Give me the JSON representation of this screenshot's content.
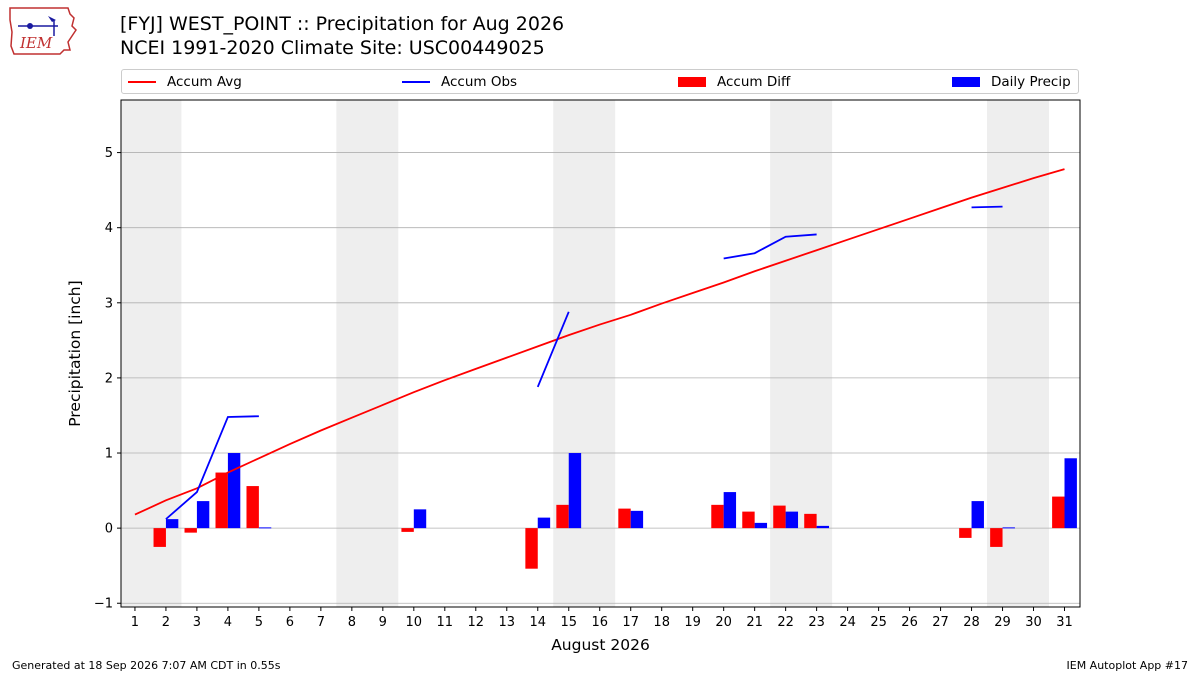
{
  "header": {
    "title_line1": "[FYJ] WEST_POINT :: Precipitation for Aug 2026",
    "title_line2": "NCEI 1991-2020 Climate Site: USC00449025"
  },
  "logo": {
    "text": "IEM"
  },
  "footer": {
    "left": "Generated at 18 Sep 2026 7:07 AM CDT in 0.55s",
    "right": "IEM Autoplot App #17"
  },
  "colors": {
    "red": "#ff0000",
    "blue": "#0000ff",
    "weekend": "#eeeeee",
    "grid": "#b0b0b0"
  },
  "chart_data": {
    "type": "bar",
    "xlabel": "August 2026",
    "ylabel": "Precipitation [inch]",
    "ylim": [
      -1.05,
      5.7
    ],
    "yticks": [
      -1,
      0,
      1,
      2,
      3,
      4,
      5
    ],
    "xticks": [
      1,
      2,
      3,
      4,
      5,
      6,
      7,
      8,
      9,
      10,
      11,
      12,
      13,
      14,
      15,
      16,
      17,
      18,
      19,
      20,
      21,
      22,
      23,
      24,
      25,
      26,
      27,
      28,
      29,
      30,
      31
    ],
    "grid": "horizontal",
    "legend_position": "top",
    "shaded_weekends": [
      [
        1,
        2
      ],
      [
        8,
        9
      ],
      [
        15,
        16
      ],
      [
        22,
        23
      ],
      [
        29,
        30
      ]
    ],
    "legend": [
      "Accum Avg",
      "Accum Obs",
      "Accum Diff",
      "Daily Precip"
    ],
    "series": [
      {
        "name": "Accum Avg",
        "kind": "line",
        "color": "#ff0000",
        "x": [
          1,
          2,
          3,
          4,
          5,
          6,
          7,
          8,
          9,
          10,
          11,
          12,
          13,
          14,
          15,
          16,
          17,
          18,
          19,
          20,
          21,
          22,
          23,
          24,
          25,
          26,
          27,
          28,
          29,
          30,
          31
        ],
        "values": [
          0.18,
          0.37,
          0.53,
          0.74,
          0.93,
          1.12,
          1.3,
          1.47,
          1.64,
          1.81,
          1.97,
          2.12,
          2.27,
          2.42,
          2.57,
          2.71,
          2.84,
          2.99,
          3.13,
          3.27,
          3.42,
          3.56,
          3.7,
          3.84,
          3.98,
          4.12,
          4.26,
          4.4,
          4.53,
          4.66,
          4.78
        ]
      },
      {
        "name": "Accum Obs",
        "kind": "line",
        "color": "#0000ff",
        "segments": [
          {
            "x": [
              2,
              3,
              4,
              5
            ],
            "values": [
              0.12,
              0.48,
              1.48,
              1.49
            ]
          },
          {
            "x": [
              14,
              15
            ],
            "values": [
              1.88,
              2.88
            ]
          },
          {
            "x": [
              20,
              21,
              22,
              23
            ],
            "values": [
              3.59,
              3.66,
              3.88,
              3.91
            ]
          },
          {
            "x": [
              28,
              29
            ],
            "values": [
              4.27,
              4.28
            ]
          }
        ]
      },
      {
        "name": "Accum Diff",
        "kind": "bar",
        "color": "#ff0000",
        "x": [
          2,
          3,
          4,
          5,
          10,
          14,
          15,
          17,
          20,
          21,
          22,
          23,
          28,
          29,
          31
        ],
        "values": [
          -0.25,
          -0.06,
          0.74,
          0.56,
          -0.05,
          -0.54,
          0.31,
          0.26,
          0.31,
          0.22,
          0.3,
          0.19,
          -0.13,
          -0.25,
          0.42
        ]
      },
      {
        "name": "Daily Precip",
        "kind": "bar",
        "color": "#0000ff",
        "x": [
          2,
          3,
          4,
          5,
          10,
          14,
          15,
          17,
          20,
          21,
          22,
          23,
          28,
          29,
          31
        ],
        "values": [
          0.12,
          0.36,
          1.0,
          0.01,
          0.25,
          0.14,
          1.0,
          0.23,
          0.48,
          0.07,
          0.22,
          0.03,
          0.36,
          0.01,
          0.93
        ]
      }
    ]
  }
}
